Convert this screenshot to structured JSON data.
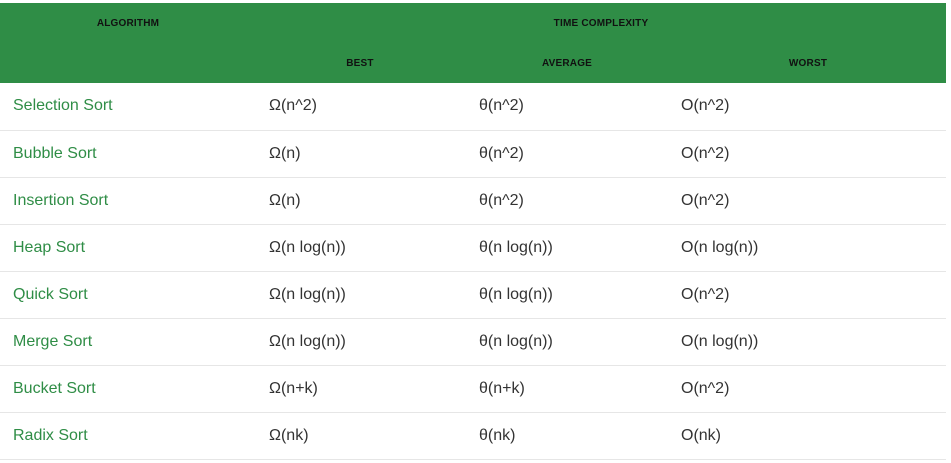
{
  "header": {
    "algorithm": "ALGORITHM",
    "time_complexity": "TIME COMPLEXITY",
    "best": "BEST",
    "average": "AVERAGE",
    "worst": "WORST"
  },
  "rows": [
    {
      "name": "Selection Sort",
      "best": "Ω(n^2)",
      "average": "θ(n^2)",
      "worst": "O(n^2)"
    },
    {
      "name": "Bubble Sort",
      "best": "Ω(n)",
      "average": "θ(n^2)",
      "worst": "O(n^2)"
    },
    {
      "name": "Insertion Sort",
      "best": "Ω(n)",
      "average": "θ(n^2)",
      "worst": "O(n^2)"
    },
    {
      "name": "Heap Sort",
      "best": "Ω(n log(n))",
      "average": "θ(n log(n))",
      "worst": "O(n log(n))"
    },
    {
      "name": "Quick Sort",
      "best": "Ω(n log(n))",
      "average": "θ(n log(n))",
      "worst": "O(n^2)"
    },
    {
      "name": "Merge Sort",
      "best": "Ω(n log(n))",
      "average": "θ(n log(n))",
      "worst": "O(n log(n))"
    },
    {
      "name": "Bucket Sort",
      "best": "Ω(n+k)",
      "average": "θ(n+k)",
      "worst": "O(n^2)"
    },
    {
      "name": "Radix Sort",
      "best": "Ω(nk)",
      "average": "θ(nk)",
      "worst": "O(nk)"
    }
  ],
  "colors": {
    "header_bg": "#2f8d46",
    "name_text": "#2f8d46",
    "body_text": "#333333",
    "row_border": "#e6e6e6"
  }
}
